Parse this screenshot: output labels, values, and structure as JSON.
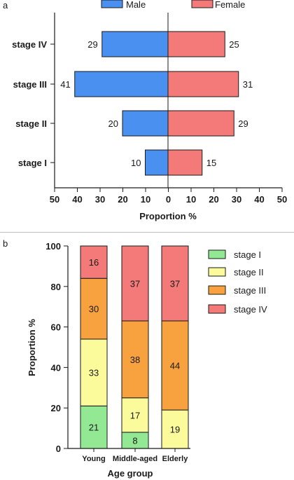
{
  "chart_data": [
    {
      "panel": "a",
      "type": "bar",
      "orientation": "horizontal",
      "categories": [
        "stage IV",
        "stage III",
        "stage II",
        "stage I"
      ],
      "series": [
        {
          "name": "Male",
          "values": [
            29,
            41,
            20,
            10
          ],
          "color": "#4a90f0",
          "direction": "left"
        },
        {
          "name": "Female",
          "values": [
            25,
            31,
            29,
            15
          ],
          "color": "#f47a7a",
          "direction": "right"
        }
      ],
      "xlabel": "Proportion %",
      "xlim": [
        -50,
        50
      ],
      "ticks": [
        "50",
        "40",
        "30",
        "20",
        "10",
        "0",
        "10",
        "20",
        "30",
        "40",
        "50"
      ],
      "legend_position": "top"
    },
    {
      "panel": "b",
      "type": "bar",
      "stacked": true,
      "categories": [
        "Young",
        "Middle-aged",
        "Elderly"
      ],
      "series": [
        {
          "name": "stage I",
          "values": [
            21,
            8,
            0
          ],
          "labels": [
            "21",
            "8",
            ""
          ],
          "color": "#93e893"
        },
        {
          "name": "stage II",
          "values": [
            33,
            17,
            19
          ],
          "labels": [
            "33",
            "17",
            "19"
          ],
          "color": "#fbfb9c"
        },
        {
          "name": "stage III",
          "values": [
            30,
            38,
            44
          ],
          "labels": [
            "30",
            "38",
            "44"
          ],
          "color": "#f8a13f"
        },
        {
          "name": "stage IV",
          "values": [
            16,
            37,
            37
          ],
          "labels": [
            "16",
            "37",
            "37"
          ],
          "color": "#f47a7a"
        }
      ],
      "xlabel": "Age group",
      "ylabel": "Proportion %",
      "ylim": [
        0,
        100
      ],
      "yticks": [
        "0",
        "20",
        "40",
        "60",
        "80",
        "100"
      ],
      "legend_position": "right"
    }
  ]
}
